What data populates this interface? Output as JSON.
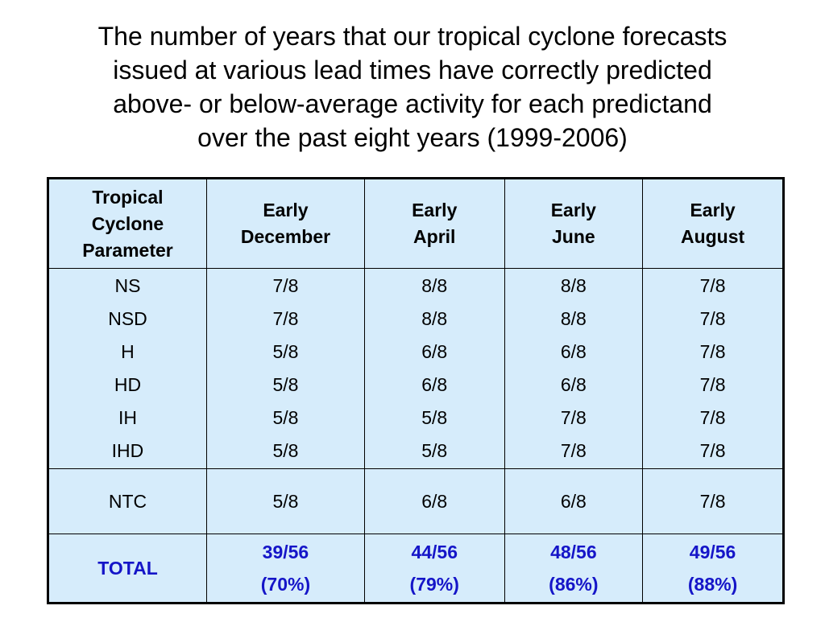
{
  "title": {
    "lines": [
      "The number of years that our tropical cyclone forecasts",
      "issued at various lead times have correctly predicted",
      "above- or below-average activity for each predictand",
      "over the past eight years (1999-2006)"
    ]
  },
  "header": [
    [
      "Tropical",
      "Cyclone",
      "Parameter"
    ],
    [
      "Early",
      "December"
    ],
    [
      "Early",
      "April"
    ],
    [
      "Early",
      "June"
    ],
    [
      "Early",
      "August"
    ]
  ],
  "main": {
    "parameters": [
      "NS",
      "NSD",
      "H",
      "HD",
      "IH",
      "IHD"
    ],
    "columns": [
      [
        "7/8",
        "7/8",
        "5/8",
        "5/8",
        "5/8",
        "5/8"
      ],
      [
        "8/8",
        "8/8",
        "6/8",
        "6/8",
        "5/8",
        "5/8"
      ],
      [
        "8/8",
        "8/8",
        "6/8",
        "6/8",
        "7/8",
        "7/8"
      ],
      [
        "7/8",
        "7/8",
        "7/8",
        "7/8",
        "7/8",
        "7/8"
      ]
    ]
  },
  "ntc": {
    "label": "NTC",
    "values": [
      "5/8",
      "6/8",
      "6/8",
      "7/8"
    ]
  },
  "total": {
    "label": "TOTAL",
    "fractions": [
      "39/56",
      "44/56",
      "48/56",
      "49/56"
    ],
    "percents": [
      "(70%)",
      "(79%)",
      "(86%)",
      "(88%)"
    ]
  },
  "colors": {
    "table_bg": "#d6ecfb",
    "total_text": "#1515c8"
  }
}
